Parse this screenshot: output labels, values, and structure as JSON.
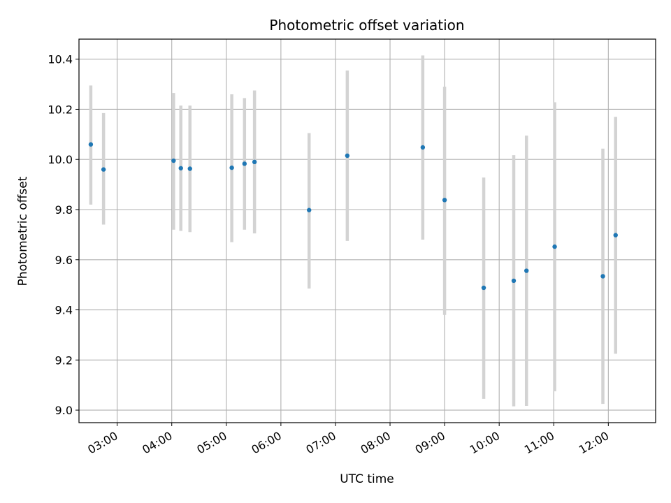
{
  "chart_data": {
    "type": "scatter",
    "title": "Photometric offset variation",
    "xlabel": "UTC time",
    "ylabel": "Photometric offset",
    "x_unit": "UTC time (hh:mm)",
    "xlim": [
      "02:18",
      "12:52"
    ],
    "ylim": [
      8.95,
      10.48
    ],
    "grid": true,
    "marker_color": "#1f77b4",
    "errorbar_color": "#d3d3d3",
    "x_ticks": [
      "03:00",
      "04:00",
      "05:00",
      "06:00",
      "07:00",
      "08:00",
      "09:00",
      "10:00",
      "11:00",
      "12:00"
    ],
    "y_ticks": [
      "9.0",
      "9.2",
      "9.4",
      "9.6",
      "9.8",
      "10.0",
      "10.2",
      "10.4"
    ],
    "points": [
      {
        "x": "02:31",
        "y": 10.06,
        "y_low": 9.82,
        "y_high": 10.295
      },
      {
        "x": "02:45",
        "y": 9.96,
        "y_low": 9.74,
        "y_high": 10.185
      },
      {
        "x": "04:02",
        "y": 9.995,
        "y_low": 9.72,
        "y_high": 10.265
      },
      {
        "x": "04:10",
        "y": 9.965,
        "y_low": 9.715,
        "y_high": 10.215
      },
      {
        "x": "04:20",
        "y": 9.963,
        "y_low": 9.71,
        "y_high": 10.215
      },
      {
        "x": "05:06",
        "y": 9.967,
        "y_low": 9.67,
        "y_high": 10.26
      },
      {
        "x": "05:20",
        "y": 9.983,
        "y_low": 9.72,
        "y_high": 10.245
      },
      {
        "x": "05:31",
        "y": 9.99,
        "y_low": 9.705,
        "y_high": 10.275
      },
      {
        "x": "06:31",
        "y": 9.798,
        "y_low": 9.485,
        "y_high": 10.105
      },
      {
        "x": "07:13",
        "y": 10.015,
        "y_low": 9.675,
        "y_high": 10.355
      },
      {
        "x": "08:36",
        "y": 10.048,
        "y_low": 9.68,
        "y_high": 10.415
      },
      {
        "x": "09:00",
        "y": 9.838,
        "y_low": 9.38,
        "y_high": 10.29
      },
      {
        "x": "09:43",
        "y": 9.488,
        "y_low": 9.045,
        "y_high": 9.928
      },
      {
        "x": "10:16",
        "y": 9.516,
        "y_low": 9.015,
        "y_high": 10.017
      },
      {
        "x": "10:30",
        "y": 9.556,
        "y_low": 9.017,
        "y_high": 10.095
      },
      {
        "x": "11:01",
        "y": 9.652,
        "y_low": 9.075,
        "y_high": 10.228
      },
      {
        "x": "11:54",
        "y": 9.534,
        "y_low": 9.025,
        "y_high": 10.043
      },
      {
        "x": "12:08",
        "y": 9.698,
        "y_low": 9.225,
        "y_high": 10.17
      }
    ]
  }
}
